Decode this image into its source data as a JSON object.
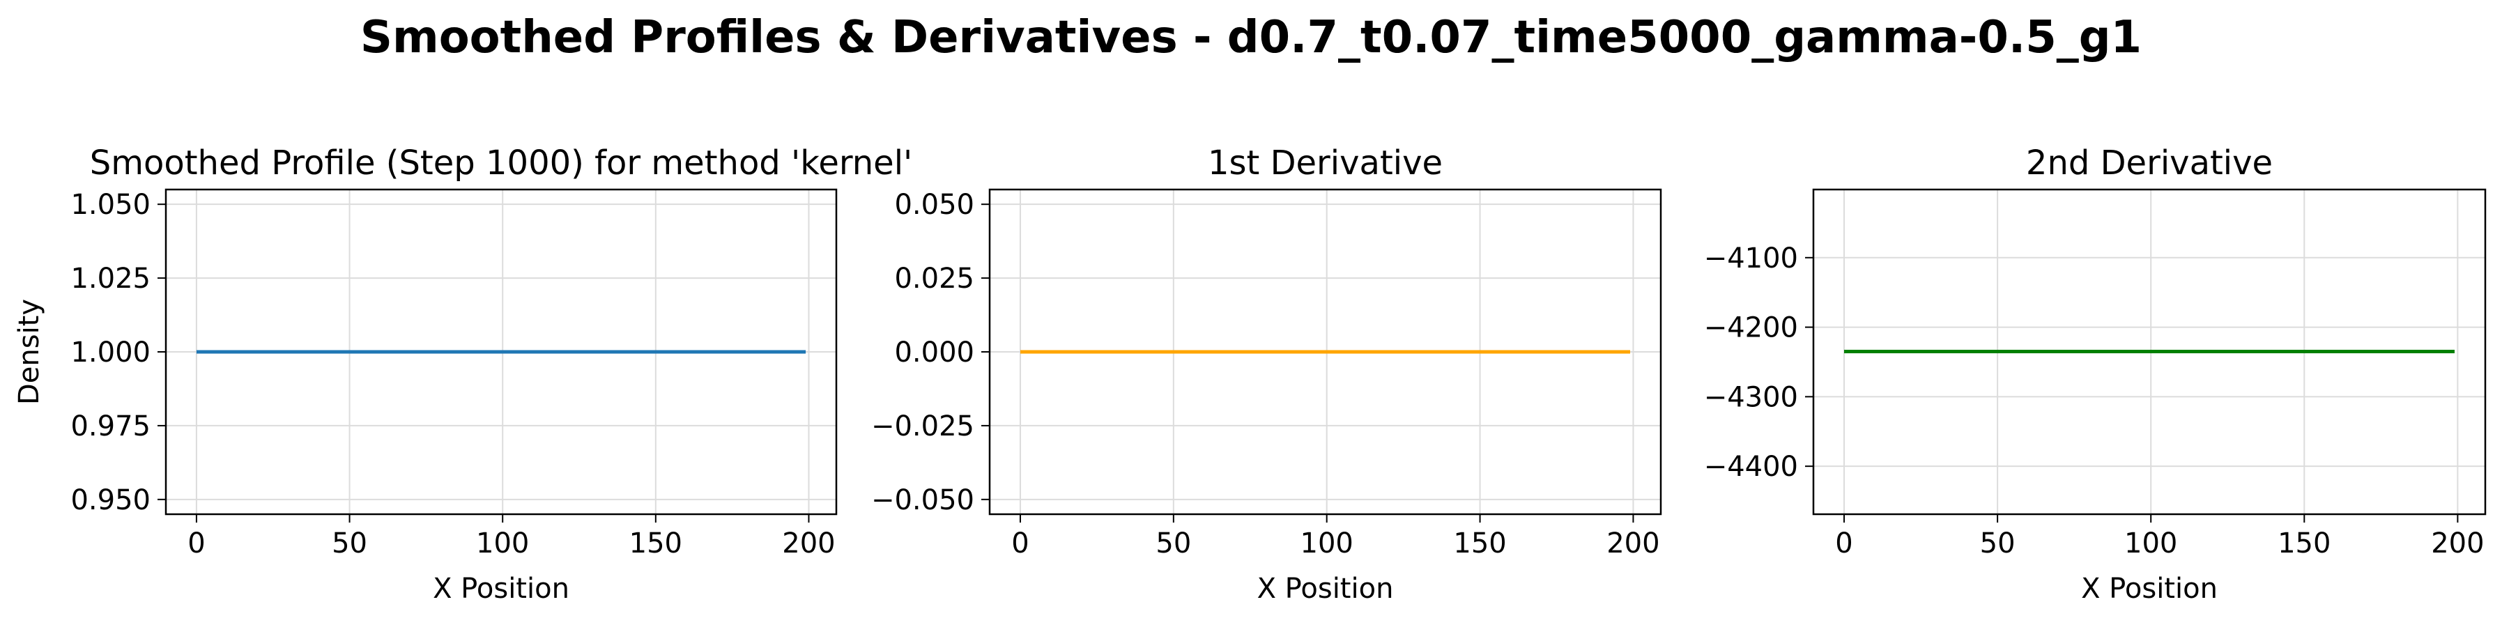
{
  "figure": {
    "suptitle": "Smoothed Profiles & Derivatives - d0.7_t0.07_time5000_gamma-0.5_g1"
  },
  "chart_data": [
    {
      "type": "line",
      "title": "Smoothed Profile (Step 1000) for method 'kernel'",
      "xlabel": "X Position",
      "ylabel": "Density",
      "xlim": [
        -10,
        209
      ],
      "ylim": [
        0.945,
        1.055
      ],
      "xticks": [
        0,
        50,
        100,
        150,
        200
      ],
      "xtick_labels": [
        "0",
        "50",
        "100",
        "150",
        "200"
      ],
      "yticks": [
        0.95,
        0.975,
        1.0,
        1.025,
        1.05
      ],
      "ytick_labels": [
        "0.950",
        "0.975",
        "1.000",
        "1.025",
        "1.050"
      ],
      "grid": true,
      "series": [
        {
          "x": [
            0,
            199
          ],
          "y": [
            1.0,
            1.0
          ],
          "color": "#1f77b4"
        }
      ]
    },
    {
      "type": "line",
      "title": "1st Derivative",
      "xlabel": "X Position",
      "ylabel": "",
      "xlim": [
        -10,
        209
      ],
      "ylim": [
        -0.055,
        0.055
      ],
      "xticks": [
        0,
        50,
        100,
        150,
        200
      ],
      "xtick_labels": [
        "0",
        "50",
        "100",
        "150",
        "200"
      ],
      "yticks": [
        -0.05,
        -0.025,
        0.0,
        0.025,
        0.05
      ],
      "ytick_labels": [
        "−0.050",
        "−0.025",
        "0.000",
        "0.025",
        "0.050"
      ],
      "grid": true,
      "series": [
        {
          "x": [
            0,
            199
          ],
          "y": [
            0.0,
            0.0
          ],
          "color": "#ffa500"
        }
      ]
    },
    {
      "type": "line",
      "title": "2nd Derivative",
      "xlabel": "X Position",
      "ylabel": "",
      "xlim": [
        -10,
        209
      ],
      "ylim": [
        -4469,
        -4002
      ],
      "xticks": [
        0,
        50,
        100,
        150,
        200
      ],
      "xtick_labels": [
        "0",
        "50",
        "100",
        "150",
        "200"
      ],
      "yticks": [
        -4100,
        -4200,
        -4300,
        -4400
      ],
      "ytick_labels": [
        "−4100",
        "−4200",
        "−4300",
        "−4400"
      ],
      "grid": true,
      "series": [
        {
          "x": [
            0,
            199
          ],
          "y": [
            -4235,
            -4235
          ],
          "color": "#008000"
        }
      ]
    }
  ]
}
